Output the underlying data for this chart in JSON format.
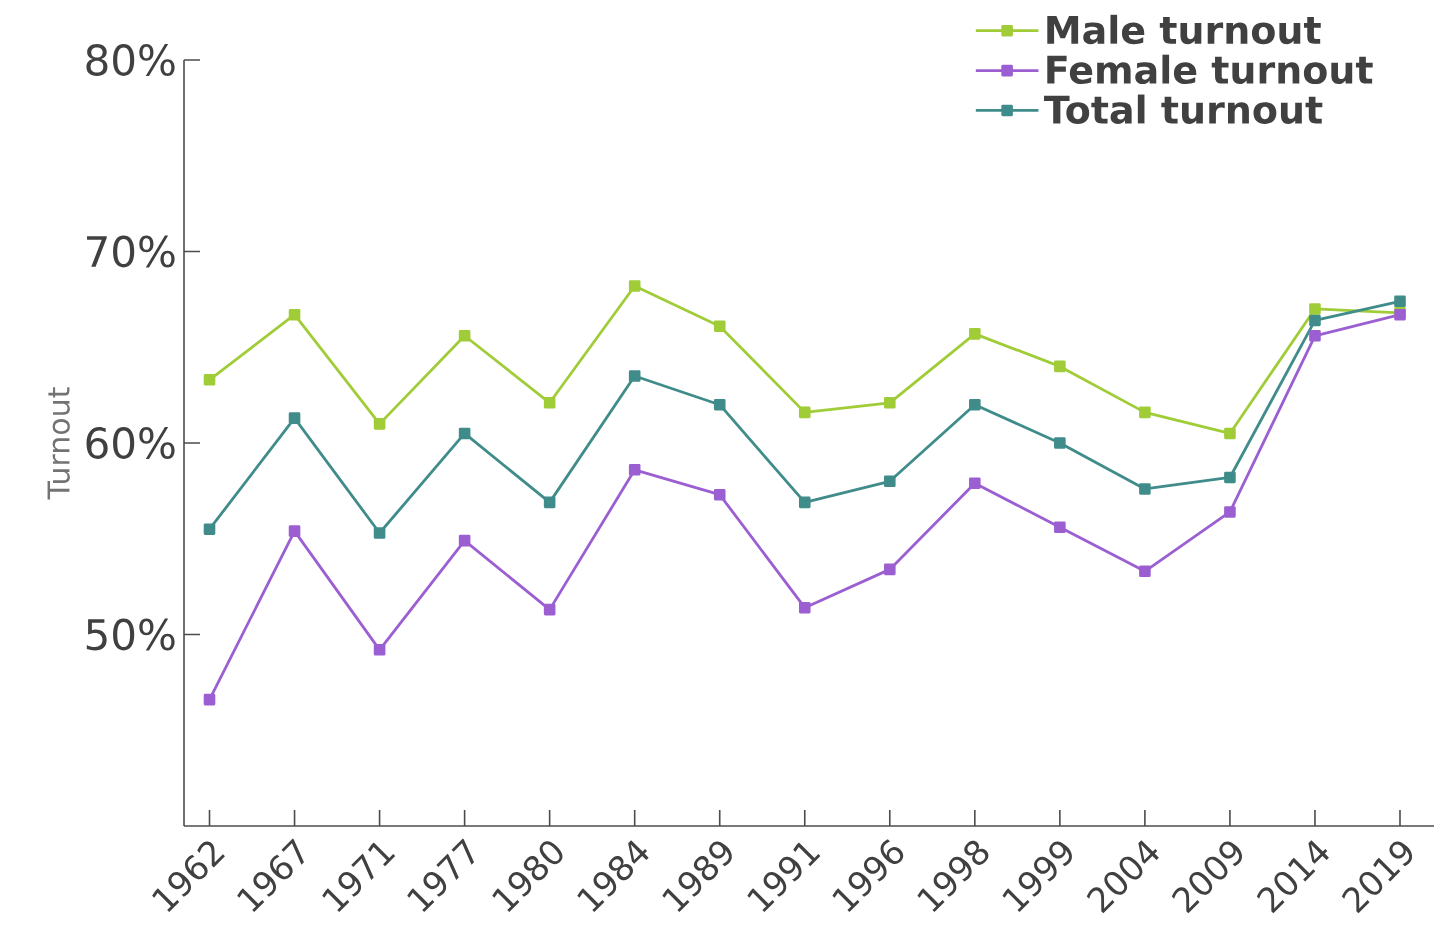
{
  "chart_data": {
    "type": "line",
    "ylabel": "Turnout",
    "categories": [
      "1962",
      "1967",
      "1971",
      "1977",
      "1980",
      "1984",
      "1989",
      "1991",
      "1996",
      "1998",
      "1999",
      "2004",
      "2009",
      "2014",
      "2019"
    ],
    "series": [
      {
        "name": "Male turnout",
        "color": "#a0cc38",
        "values": [
          63.3,
          66.7,
          61.0,
          65.6,
          62.1,
          68.2,
          66.1,
          61.6,
          62.1,
          65.7,
          64.0,
          61.6,
          60.5,
          67.0,
          66.8
        ]
      },
      {
        "name": "Female turnout",
        "color": "#9b5fd2",
        "values": [
          46.6,
          55.4,
          49.2,
          54.9,
          51.3,
          58.6,
          57.3,
          51.4,
          53.4,
          57.9,
          55.6,
          53.3,
          56.4,
          65.6,
          66.7
        ]
      },
      {
        "name": "Total turnout",
        "color": "#3f8c8a",
        "values": [
          55.5,
          61.3,
          55.3,
          60.5,
          56.9,
          63.5,
          62.0,
          56.9,
          58.0,
          62.0,
          60.0,
          57.6,
          58.2,
          66.4,
          67.4
        ]
      }
    ],
    "ylim": [
      40,
      80
    ],
    "yticks": [
      {
        "value": 50,
        "label": "50%"
      },
      {
        "value": 60,
        "label": "60%"
      },
      {
        "value": 70,
        "label": "70%"
      },
      {
        "value": 80,
        "label": "80%"
      }
    ],
    "legend": "top right",
    "marker": "square",
    "line_style": "solid"
  }
}
